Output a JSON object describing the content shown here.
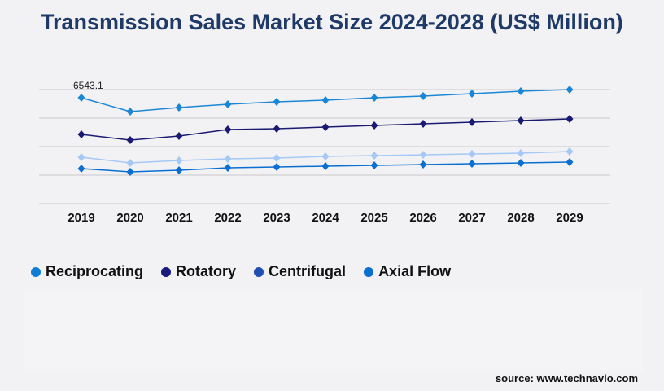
{
  "chart_data": {
    "type": "line",
    "title": "Transmission Sales Market Size 2024-2028 (US$ Million)",
    "x": [
      "2019",
      "2020",
      "2021",
      "2022",
      "2023",
      "2024",
      "2025",
      "2026",
      "2027",
      "2028",
      "2029"
    ],
    "ylim": [
      0,
      7047
    ],
    "grid": true,
    "legend_placement": "bottom-left",
    "annotations": [
      {
        "x": "2019",
        "series": "Reciprocating",
        "text": "6543.1"
      }
    ],
    "series": [
      {
        "name": "Reciprocating",
        "legend_color": "#0f7dd6",
        "line_color": "#1a86d6",
        "values": [
          6543.1,
          5688,
          5940,
          6141,
          6291,
          6392,
          6543,
          6644,
          6795,
          6946,
          7047
        ]
      },
      {
        "name": "Rotatory",
        "legend_color": "#1a1a7a",
        "line_color": "#1a1a72",
        "values": [
          4278,
          3926,
          4178,
          4580,
          4630,
          4731,
          4832,
          4932,
          5033,
          5134,
          5234
        ]
      },
      {
        "name": "Centrifugal",
        "legend_color": "#1f4fb5",
        "line_color": "#a6c8f5",
        "values": [
          2869,
          2517,
          2667,
          2768,
          2818,
          2919,
          2969,
          3020,
          3070,
          3121,
          3221
        ]
      },
      {
        "name": "Axial Flow",
        "legend_color": "#0a6fd0",
        "line_color": "#0a6fd0",
        "values": [
          2164,
          1963,
          2063,
          2214,
          2265,
          2315,
          2365,
          2416,
          2466,
          2517,
          2567
        ]
      }
    ]
  },
  "source": "source: www.technavio.com"
}
